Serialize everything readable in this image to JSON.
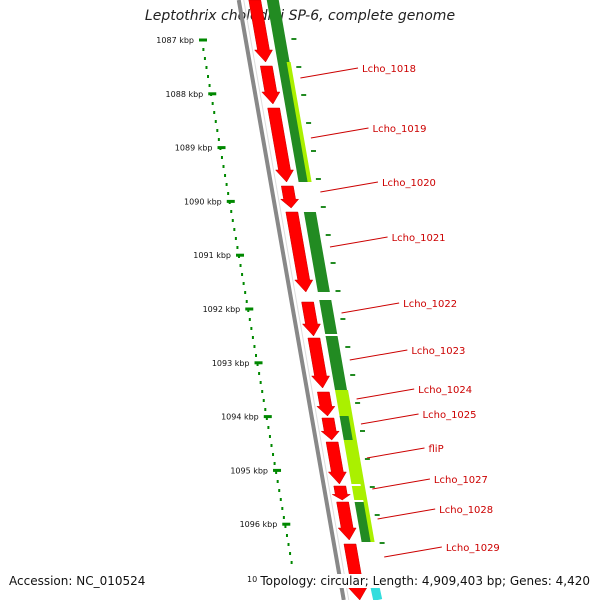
{
  "title": "Leptothrix cholodnii SP-6, complete genome",
  "accession": "Accession: NC_010524",
  "topology": "Topology: circular; Length: 4,909,403 bp; Genes: 4,420",
  "ticks": [
    {
      "label": "1087 kbp"
    },
    {
      "label": "1088 kbp"
    },
    {
      "label": "1089 kbp"
    },
    {
      "label": "1090 kbp"
    },
    {
      "label": "1091 kbp"
    },
    {
      "label": "1092 kbp"
    },
    {
      "label": "1093 kbp"
    },
    {
      "label": "1094 kbp"
    },
    {
      "label": "1095 kbp"
    },
    {
      "label": "1096 kbp"
    }
  ],
  "truncated_tick": "10",
  "gene_labels": [
    {
      "text": "Lcho_1018"
    },
    {
      "text": "Lcho_1019"
    },
    {
      "text": "Lcho_1020"
    },
    {
      "text": "Lcho_1021"
    },
    {
      "text": "Lcho_1022"
    },
    {
      "text": "Lcho_1023"
    },
    {
      "text": "Lcho_1024"
    },
    {
      "text": "Lcho_1025"
    },
    {
      "text": "fliP"
    },
    {
      "text": "Lcho_1027"
    },
    {
      "text": "Lcho_1028"
    },
    {
      "text": "Lcho_1029"
    }
  ],
  "colors": {
    "cds": "#ff0000",
    "dark_green": "#228b22",
    "light_green": "#aaf000",
    "tick_green": "#008800",
    "backbone": "#888888",
    "label_red": "#cc0000",
    "cyan": "#33dddd"
  }
}
